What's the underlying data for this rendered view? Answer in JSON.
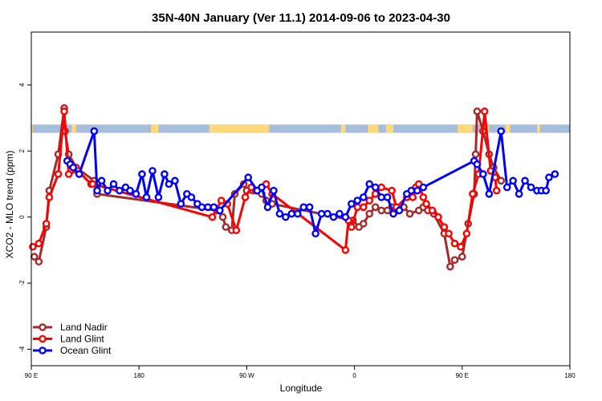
{
  "chart_data": {
    "type": "line",
    "title": "35N-40N January (Ver 11.1)   2014-09-06 to 2023-04-30",
    "xlabel": "Longitude",
    "ylabel": "XCO2 - MLO trend (ppm)",
    "xlim": [
      90,
      450
    ],
    "ylim": [
      -4.5,
      5.6
    ],
    "x_ticks": [
      {
        "value": 90,
        "label": "90 E"
      },
      {
        "value": 162,
        "label": "180"
      },
      {
        "value": 234,
        "label": "90 W"
      },
      {
        "value": 306,
        "label": "0"
      },
      {
        "value": 378,
        "label": "90 E"
      },
      {
        "value": 450,
        "label": "180"
      }
    ],
    "y_ticks": [
      {
        "value": -4,
        "label": "-4"
      },
      {
        "value": -2,
        "label": "-2"
      },
      {
        "value": 0,
        "label": "0"
      },
      {
        "value": 2,
        "label": "2"
      },
      {
        "value": 4,
        "label": "4"
      }
    ],
    "legend_position": "bottom-left",
    "land_ocean_band": {
      "y_range": [
        2.55,
        2.8
      ],
      "ocean_color": "#a6bddb",
      "land_color": "#ffd97a",
      "land_segments": [
        [
          90,
          91
        ],
        [
          117,
          120
        ],
        [
          170,
          175
        ],
        [
          209,
          249
        ],
        [
          297,
          300
        ],
        [
          315,
          322
        ],
        [
          327,
          332
        ],
        [
          375,
          385
        ],
        [
          390,
          396
        ],
        [
          407,
          410
        ],
        [
          428,
          430
        ]
      ]
    },
    "series": [
      {
        "name": "Land Nadir",
        "color": "#a52a2a",
        "x": [
          92,
          95,
          100,
          102,
          108,
          112,
          112.5,
          115,
          120,
          132,
          134,
          214,
          218,
          220,
          224,
          226,
          232,
          234,
          238,
          241,
          244,
          247,
          251,
          305,
          309,
          312,
          316,
          320,
          324,
          328,
          331,
          335,
          339,
          343,
          349,
          352,
          355,
          359,
          366,
          370,
          373,
          378,
          382,
          386,
          387,
          388,
          392,
          396,
          399,
          404
        ],
        "y": [
          -1.2,
          -1.35,
          -0.3,
          0.8,
          1.9,
          3.3,
          2.6,
          1.9,
          1.5,
          1.1,
          0.7,
          0.2,
          0,
          -0.3,
          -0.4,
          0.7,
          1,
          0.8,
          0.8,
          0.8,
          0.7,
          0.5,
          0.4,
          -0.1,
          -0.3,
          -0.2,
          0.1,
          0.3,
          0.2,
          0.2,
          0.3,
          0.2,
          0.3,
          0.1,
          0.2,
          0.3,
          0.2,
          0.1,
          -0.5,
          -1.5,
          -1.3,
          -1.2,
          -0.2,
          0.7,
          1.9,
          3.2,
          2.6,
          1.9,
          1.5,
          1.1
        ]
      },
      {
        "name": "Land Glint",
        "color": "#ff0000",
        "x": [
          91,
          95,
          100,
          102,
          108,
          112,
          115,
          121,
          130,
          131,
          211,
          217,
          221,
          227,
          233,
          237,
          240,
          244,
          247,
          251,
          300,
          302,
          304,
          308,
          312,
          316,
          320,
          324,
          331,
          334,
          341,
          345,
          347,
          349,
          352,
          354,
          358,
          362,
          366,
          369,
          373,
          377,
          381,
          385,
          389,
          393,
          397,
          400,
          401
        ],
        "y": [
          -0.9,
          -0.8,
          -0.2,
          0.6,
          1.3,
          3.2,
          1.3,
          1.4,
          1.0,
          1.0,
          0,
          0.5,
          0.4,
          -0.4,
          0.6,
          0.9,
          0.8,
          0.9,
          1.0,
          0.7,
          -1.0,
          -0.1,
          -0.3,
          0.3,
          0.3,
          0.5,
          0.7,
          0.9,
          0.8,
          0.3,
          0.6,
          0.6,
          0.9,
          1.0,
          0.6,
          0.4,
          0.2,
          0,
          -0.3,
          -0.5,
          -0.8,
          -0.9,
          -0.5,
          0.7,
          1.3,
          3.2,
          1.4,
          1.2,
          0.8
        ]
      },
      {
        "name": "Ocean Glint",
        "color": "#0000ff",
        "x": [
          114,
          116,
          118,
          122,
          132,
          134,
          137,
          141,
          145,
          149,
          153,
          156,
          160,
          164,
          167,
          171,
          175,
          179,
          182,
          186,
          190,
          194,
          197,
          201,
          204,
          208,
          212,
          216,
          235,
          241,
          244,
          248,
          252,
          256,
          260,
          264,
          268,
          272,
          276,
          280,
          284,
          288,
          292,
          296,
          300,
          304,
          308,
          312,
          316,
          320,
          324,
          328,
          332,
          336,
          341,
          344,
          348,
          352,
          386,
          388,
          392,
          396,
          404,
          408,
          412,
          416,
          420,
          424,
          428,
          431,
          434,
          436,
          440
        ],
        "y": [
          1.7,
          1.6,
          1.5,
          1.3,
          2.6,
          0.8,
          1.1,
          0.8,
          1.0,
          0.8,
          0.9,
          0.8,
          0.7,
          1.3,
          0.6,
          1.4,
          0.6,
          1.3,
          1.0,
          1.1,
          0.4,
          0.7,
          0.6,
          0.4,
          0.3,
          0.3,
          0.3,
          0.2,
          1.2,
          0.8,
          0.9,
          0.3,
          0.8,
          0.1,
          0,
          0.1,
          0.1,
          0.3,
          0.3,
          -0.5,
          0.1,
          0.1,
          0.0,
          0.1,
          0.0,
          0.4,
          0.5,
          0.6,
          1.0,
          0.9,
          0.6,
          0.6,
          0.1,
          0.2,
          0.7,
          0.8,
          0.8,
          0.9,
          1.7,
          1.6,
          1.3,
          0.7,
          2.6,
          0.9,
          1.1,
          0.7,
          1.1,
          0.9,
          0.8,
          0.8,
          0.8,
          1.2,
          1.3
        ]
      }
    ]
  }
}
